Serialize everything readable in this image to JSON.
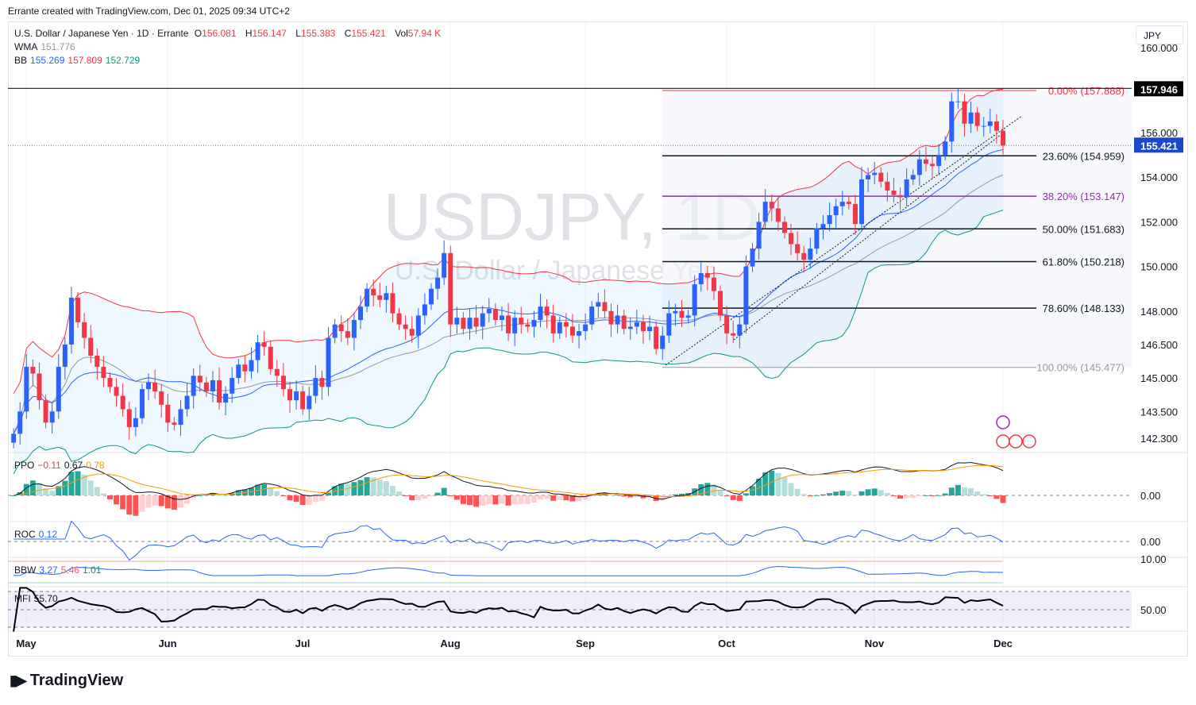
{
  "credit": "Errante created with TradingView.com, Dec 01, 2025 09:34 UTC+2",
  "legend": {
    "title": "U.S. Dollar / Japanese Yen · 1D · Errante",
    "o_label": "O",
    "o": "156.081",
    "h_label": "H",
    "h": "156.147",
    "l_label": "L",
    "l": "155.383",
    "c_label": "C",
    "c": "155.421",
    "vol_label": "Vol",
    "vol": "57.94 K",
    "wma_label": "WMA",
    "wma": "151.776",
    "bb_label": "BB",
    "bb_mid": "155.269",
    "bb_up": "157.809",
    "bb_low": "152.729",
    "ppo_label": "PPO",
    "ppo_hist": "−0.11",
    "ppo_line": "0.67",
    "ppo_signal": "0.78",
    "roc_label": "ROC",
    "roc": "0.12",
    "bbw_label": "BBW",
    "bbw": "3.27",
    "bbw_hi": "5.46",
    "bbw_lo": "1.01",
    "mfi_label": "MFI",
    "mfi": "55.70"
  },
  "currency": "JPY",
  "watermark": {
    "symbol": "USDJPY, 1D",
    "name": "U.S. Dollar / Japanese Yen"
  },
  "brand": "TradingView",
  "colors": {
    "up": "#2962ff",
    "down": "#f23645",
    "bb_upper": "#f23645",
    "bb_lower": "#089981",
    "bb_mid": "#2962ff",
    "wma": "#9598a1",
    "fib_38": "#9c27b0"
  },
  "chart_data": {
    "type": "candlestick",
    "title": "USDJPY, 1D",
    "x_tick_labels": [
      "May",
      "Jun",
      "Jul",
      "Aug",
      "Sep",
      "Oct",
      "Nov",
      "Dec"
    ],
    "y_tick_labels": [
      "160.000",
      "156.000",
      "154.000",
      "152.000",
      "150.000",
      "148.000",
      "146.500",
      "145.000",
      "143.500",
      "142.300"
    ],
    "ylim": [
      142.0,
      158.5
    ],
    "last_price": "155.421",
    "high_marker": "157.946",
    "close": [
      142.5,
      143.5,
      145.5,
      145.2,
      144.0,
      143.0,
      143.5,
      145.5,
      146.5,
      148.6,
      147.5,
      146.8,
      146.0,
      145.5,
      145.0,
      144.6,
      144.2,
      143.6,
      142.8,
      143.2,
      144.5,
      144.8,
      144.4,
      143.8,
      143.0,
      142.9,
      143.6,
      144.2,
      145.1,
      144.8,
      144.4,
      144.9,
      143.9,
      144.3,
      145.0,
      145.6,
      145.3,
      145.8,
      146.6,
      146.4,
      145.4,
      145.1,
      144.5,
      144.0,
      144.4,
      143.6,
      144.2,
      145.0,
      144.6,
      146.8,
      147.4,
      147.1,
      146.8,
      147.6,
      148.2,
      149.0,
      148.7,
      148.5,
      148.8,
      147.9,
      147.4,
      147.2,
      146.9,
      147.8,
      148.3,
      149.0,
      149.5,
      150.6,
      147.4,
      147.7,
      147.2,
      147.7,
      147.3,
      147.9,
      148.1,
      147.6,
      147.8,
      147.0,
      147.7,
      147.4,
      147.3,
      147.6,
      148.2,
      147.8,
      147.0,
      147.5,
      147.3,
      146.9,
      147.1,
      147.4,
      148.2,
      148.4,
      148.0,
      147.4,
      147.8,
      147.2,
      147.3,
      147.5,
      147.1,
      147.3,
      146.3,
      146.9,
      147.9,
      148.0,
      147.7,
      147.8,
      149.2,
      149.7,
      149.5,
      148.9,
      147.8,
      147.0,
      146.9,
      147.4,
      150.0,
      150.8,
      152.0,
      152.9,
      152.6,
      152.0,
      151.5,
      151.0,
      150.6,
      150.3,
      150.8,
      151.7,
      151.9,
      152.3,
      152.7,
      152.9,
      152.8,
      151.9,
      153.9,
      154.1,
      154.2,
      153.8,
      153.4,
      153.2,
      153.1,
      153.9,
      154.1,
      154.8,
      154.6,
      154.5,
      155.0,
      155.6,
      157.4,
      157.4,
      156.4,
      156.9,
      156.3,
      156.3,
      156.5,
      156.081,
      155.421
    ],
    "fibonacci": [
      {
        "label": "0.00% (157.888)",
        "price": 157.888,
        "color": "#f23645"
      },
      {
        "label": "23.60% (154.959)",
        "price": 154.959,
        "color": "#131722"
      },
      {
        "label": "38.20% (153.147)",
        "price": 153.147,
        "color": "#9c27b0"
      },
      {
        "label": "50.00% (151.683)",
        "price": 151.683,
        "color": "#131722"
      },
      {
        "label": "61.80% (150.218)",
        "price": 150.218,
        "color": "#131722"
      },
      {
        "label": "78.60% (148.133)",
        "price": 148.133,
        "color": "#131722"
      },
      {
        "label": "100.00% (145.477)",
        "price": 145.477,
        "color": "#9598a1"
      }
    ],
    "indicator_zero_labels": {
      "ppo": "0.00",
      "roc": "0.00",
      "bbw": "10.00",
      "mfi": "50.00"
    }
  }
}
